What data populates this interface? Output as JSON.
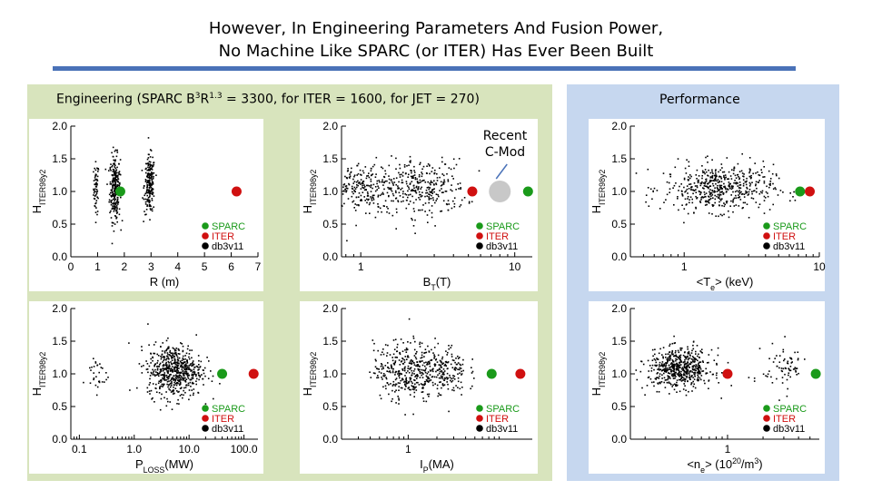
{
  "title": {
    "line1": "However, In Engineering Parameters And Fusion Power,",
    "line2": "No Machine Like SPARC (or ITER) Has Ever Been Built"
  },
  "engineering_header": {
    "prefix": "Engineering   (SPARC B",
    "exp1": "3",
    "mid": "R",
    "exp2": "1.3",
    "suffix": " = 3300,  for ITER =  1600, for JET = 270)"
  },
  "performance_header": "Performance",
  "annotation": {
    "line1": "Recent",
    "line2": "C-Mod"
  },
  "colors": {
    "sparc": "#1a9a1a",
    "iter": "#d01010",
    "db": "#000000",
    "cmod": "#c8c8c8",
    "accent": "#4a72b8"
  },
  "chart_data": [
    {
      "id": "R",
      "type": "scatter",
      "xscale": "linear",
      "xlim": [
        0,
        7
      ],
      "xticks": [
        0,
        1,
        2,
        3,
        4,
        5,
        6,
        7
      ],
      "xtick_labels": [
        "0",
        "1",
        "2",
        "3",
        "4",
        "5",
        "6",
        "7"
      ],
      "xlabel": "R (m)",
      "ylabel": "H_ITER98y2",
      "ylim": [
        0,
        2.0
      ],
      "yticks": [
        0.0,
        0.5,
        1.0,
        1.5,
        2.0
      ],
      "ytick_labels": [
        "0.0",
        "0.5",
        "1.0",
        "1.5",
        "2.0"
      ],
      "clusters": [
        {
          "center": 0.95,
          "spread": 0.05,
          "count": 60,
          "ymean": 1.05,
          "ysd": 0.2
        },
        {
          "center": 1.65,
          "spread": 0.1,
          "count": 260,
          "ymean": 1.05,
          "ysd": 0.25
        },
        {
          "center": 2.95,
          "spread": 0.1,
          "count": 200,
          "ymean": 1.1,
          "ysd": 0.22
        }
      ],
      "sparc": {
        "x": 1.85,
        "y": 1.0
      },
      "iter": {
        "x": 6.2,
        "y": 1.0
      },
      "legend": [
        "SPARC",
        "ITER",
        "db3v11"
      ]
    },
    {
      "id": "BT",
      "type": "scatter",
      "xscale": "log",
      "xlim": [
        0.75,
        13
      ],
      "xticks": [
        1,
        10
      ],
      "xtick_labels": [
        "1",
        "10"
      ],
      "xlabel": "B_T(T)",
      "ylabel": "H_ITER98y2",
      "ylim": [
        0,
        2.0
      ],
      "yticks": [
        0.0,
        0.5,
        1.0,
        1.5,
        2.0
      ],
      "ytick_labels": [
        "0.0",
        "0.5",
        "1.0",
        "1.5",
        "2.0"
      ],
      "clusters": [
        {
          "center": 1.0,
          "spread": 0.35,
          "count": 280,
          "ymean": 1.05,
          "ysd": 0.2
        },
        {
          "center": 2.6,
          "spread": 0.3,
          "count": 280,
          "ymean": 1.05,
          "ysd": 0.22
        }
      ],
      "sparc": {
        "x": 12.2,
        "y": 1.0
      },
      "iter": {
        "x": 5.3,
        "y": 1.0
      },
      "cmod": {
        "x": 8.0,
        "y": 1.0
      },
      "legend": [
        "SPARC",
        "ITER",
        "db3v11"
      ]
    },
    {
      "id": "Te",
      "type": "scatter",
      "xscale": "log",
      "xlim": [
        0.4,
        10
      ],
      "xticks": [
        1,
        10
      ],
      "xtick_labels": [
        "1",
        "10"
      ],
      "xlabel": "<T_e> (keV)",
      "ylabel": "H_ITER98y2",
      "ylim": [
        0,
        2.0
      ],
      "yticks": [
        0.0,
        0.5,
        1.0,
        1.5,
        2.0
      ],
      "ytick_labels": [
        "0.0",
        "0.5",
        "1.0",
        "1.5",
        "2.0"
      ],
      "clusters": [
        {
          "center": 1.8,
          "spread": 0.45,
          "count": 520,
          "ymean": 1.05,
          "ysd": 0.18
        }
      ],
      "sparc": {
        "x": 7.2,
        "y": 1.0
      },
      "iter": {
        "x": 8.5,
        "y": 1.0
      },
      "legend": [
        "SPARC",
        "ITER",
        "db3v11"
      ]
    },
    {
      "id": "PLOSS",
      "type": "scatter",
      "xscale": "log",
      "xlim": [
        0.07,
        180
      ],
      "xticks": [
        0.1,
        1.0,
        10.0,
        100.0
      ],
      "xtick_labels": [
        "0.1",
        "1.0",
        "10.0",
        "100.0"
      ],
      "xlabel": "P_LOSS(MW)",
      "ylabel": "H_ITER98y2",
      "ylim": [
        0,
        2.0
      ],
      "yticks": [
        0.0,
        0.5,
        1.0,
        1.5,
        2.0
      ],
      "ytick_labels": [
        "0.0",
        "0.5",
        "1.0",
        "1.5",
        "2.0"
      ],
      "clusters": [
        {
          "center": 5.5,
          "spread": 0.55,
          "count": 600,
          "ymean": 1.05,
          "ysd": 0.2
        },
        {
          "center": 0.2,
          "spread": 0.25,
          "count": 30,
          "ymean": 1.0,
          "ysd": 0.15
        }
      ],
      "sparc": {
        "x": 40,
        "y": 1.0
      },
      "iter": {
        "x": 150,
        "y": 1.0
      },
      "legend": [
        "SPARC",
        "ITER",
        "db3v11"
      ]
    },
    {
      "id": "IP",
      "type": "scatter",
      "xscale": "log",
      "xlim": [
        0.2,
        20
      ],
      "xticks": [
        1
      ],
      "xtick_labels": [
        "1"
      ],
      "xlabel": "I_P(MA)",
      "ylabel": "H_ITER98y2",
      "ylim": [
        0,
        2.0
      ],
      "yticks": [
        0.0,
        0.5,
        1.0,
        1.5,
        2.0
      ],
      "ytick_labels": [
        "0.0",
        "0.5",
        "1.0",
        "1.5",
        "2.0"
      ],
      "clusters": [
        {
          "center": 0.9,
          "spread": 0.35,
          "count": 320,
          "ymean": 1.05,
          "ysd": 0.22
        },
        {
          "center": 2.2,
          "spread": 0.3,
          "count": 220,
          "ymean": 1.05,
          "ysd": 0.2
        }
      ],
      "sparc": {
        "x": 7.5,
        "y": 1.0
      },
      "iter": {
        "x": 15,
        "y": 1.0
      },
      "legend": [
        "SPARC",
        "ITER",
        "db3v11"
      ]
    },
    {
      "id": "ne",
      "type": "scatter",
      "xscale": "log",
      "xlim": [
        0.15,
        6
      ],
      "xticks": [
        1
      ],
      "xtick_labels": [
        "1"
      ],
      "xlabel": "<n_e> (10^20/m^3)",
      "ylabel": "H_ITER98y2",
      "ylim": [
        0,
        2.0
      ],
      "yticks": [
        0.0,
        0.5,
        1.0,
        1.5,
        2.0
      ],
      "ytick_labels": [
        "0.0",
        "0.5",
        "1.0",
        "1.5",
        "2.0"
      ],
      "clusters": [
        {
          "center": 0.4,
          "spread": 0.3,
          "count": 560,
          "ymean": 1.08,
          "ysd": 0.15
        },
        {
          "center": 3.0,
          "spread": 0.2,
          "count": 70,
          "ymean": 1.1,
          "ysd": 0.18
        }
      ],
      "sparc": {
        "x": 5.6,
        "y": 1.0
      },
      "iter": {
        "x": 1.0,
        "y": 1.0
      },
      "legend": [
        "SPARC",
        "ITER",
        "db3v11"
      ]
    }
  ]
}
